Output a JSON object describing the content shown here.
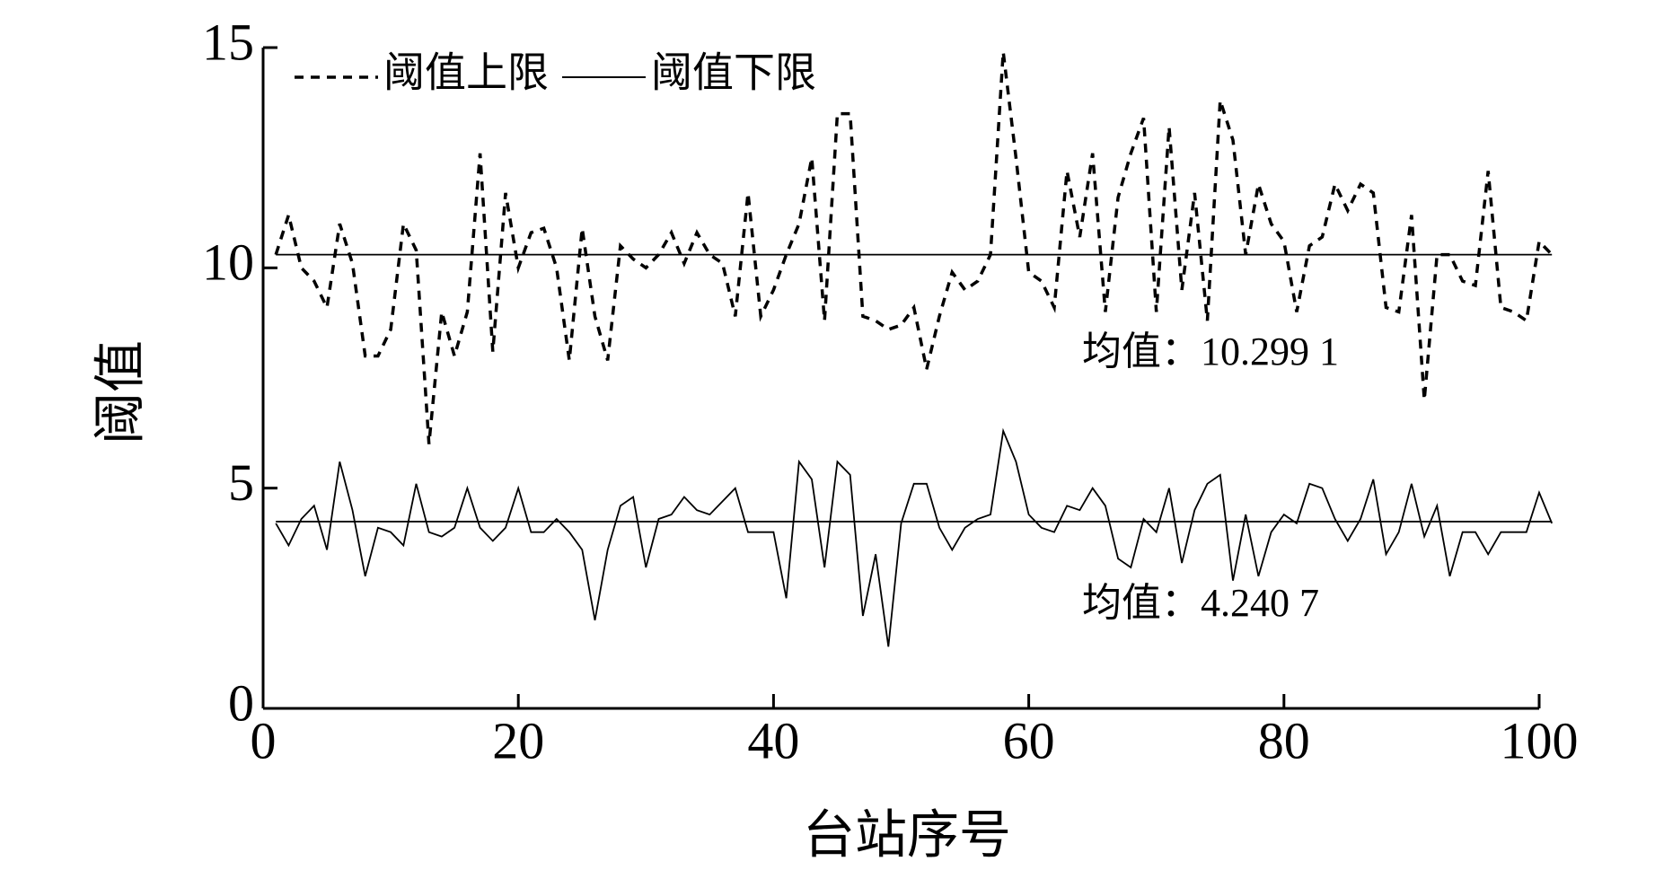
{
  "chart_data": {
    "type": "line",
    "xlabel": "台站序号",
    "ylabel": "阈值",
    "xlim": [
      0,
      100
    ],
    "ylim": [
      0,
      15
    ],
    "xticks": [
      0,
      20,
      40,
      60,
      80,
      100
    ],
    "yticks": [
      0,
      5,
      10,
      15
    ],
    "legend": "upper left",
    "x": [
      1,
      2,
      3,
      4,
      5,
      6,
      7,
      8,
      9,
      10,
      11,
      12,
      13,
      14,
      15,
      16,
      17,
      18,
      19,
      20,
      21,
      22,
      23,
      24,
      25,
      26,
      27,
      28,
      29,
      30,
      31,
      32,
      33,
      34,
      35,
      36,
      37,
      38,
      39,
      40,
      41,
      42,
      43,
      44,
      45,
      46,
      47,
      48,
      49,
      50,
      51,
      52,
      53,
      54,
      55,
      56,
      57,
      58,
      59,
      60,
      61,
      62,
      63,
      64,
      65,
      66,
      67,
      68,
      69,
      70,
      71,
      72,
      73,
      74,
      75,
      76,
      77,
      78,
      79,
      80,
      81,
      82,
      83,
      84,
      85,
      86,
      87,
      88,
      89,
      90,
      91,
      92,
      93,
      94,
      95,
      96,
      97,
      98,
      99,
      100,
      101
    ],
    "series": [
      {
        "name": "阈值上限",
        "color": "#000000",
        "dash": "dashed",
        "values": [
          10.3,
          11.2,
          10.0,
          9.7,
          9.1,
          11.0,
          10.1,
          8.0,
          8.0,
          8.6,
          11.0,
          10.4,
          6.0,
          9.0,
          8.0,
          9.0,
          12.6,
          8.1,
          11.7,
          10.0,
          10.8,
          10.9,
          10.0,
          7.9,
          10.9,
          8.9,
          7.9,
          10.5,
          10.2,
          10.0,
          10.3,
          10.8,
          10.1,
          10.8,
          10.3,
          10.1,
          8.9,
          11.7,
          8.9,
          9.5,
          10.3,
          11.0,
          12.5,
          8.8,
          13.5,
          13.5,
          8.9,
          8.8,
          8.6,
          8.7,
          9.1,
          7.7,
          8.9,
          9.9,
          9.5,
          9.7,
          10.3,
          14.9,
          12.5,
          9.9,
          9.7,
          9.1,
          12.2,
          10.7,
          12.6,
          9.0,
          11.6,
          12.6,
          13.4,
          9.0,
          13.2,
          9.5,
          11.7,
          8.8,
          13.8,
          12.9,
          10.3,
          11.9,
          11.0,
          10.6,
          9.0,
          10.5,
          10.7,
          11.9,
          11.3,
          11.9,
          11.7,
          9.1,
          9.0,
          11.2,
          7.0,
          10.3,
          10.3,
          9.7,
          9.6,
          12.2,
          9.1,
          9.0,
          8.8,
          10.6,
          10.3
        ]
      },
      {
        "name": "阈值下限",
        "color": "#000000",
        "dash": "solid",
        "values": [
          4.2,
          3.7,
          4.3,
          4.6,
          3.6,
          5.6,
          4.5,
          3.0,
          4.1,
          4.0,
          3.7,
          5.1,
          4.0,
          3.9,
          4.1,
          5.0,
          4.1,
          3.8,
          4.1,
          5.0,
          4.0,
          4.0,
          4.3,
          4.0,
          3.6,
          2.0,
          3.6,
          4.6,
          4.8,
          3.2,
          4.3,
          4.4,
          4.8,
          4.5,
          4.4,
          4.7,
          5.0,
          4.0,
          4.0,
          4.0,
          2.5,
          5.6,
          5.2,
          3.2,
          5.6,
          5.3,
          2.1,
          3.5,
          1.4,
          4.2,
          5.1,
          5.1,
          4.1,
          3.6,
          4.1,
          4.3,
          4.4,
          6.3,
          5.6,
          4.4,
          4.1,
          4.0,
          4.6,
          4.5,
          5.0,
          4.6,
          3.4,
          3.2,
          4.3,
          4.0,
          5.0,
          3.3,
          4.5,
          5.1,
          5.3,
          2.9,
          4.4,
          3.0,
          4.0,
          4.4,
          4.2,
          5.1,
          5.0,
          4.3,
          3.8,
          4.3,
          5.2,
          3.5,
          4.0,
          5.1,
          3.9,
          4.6,
          3.0,
          4.0,
          4.0,
          3.5,
          4.0,
          4.0,
          4.0,
          4.9,
          4.2
        ]
      }
    ],
    "annotations": [
      {
        "value": 10.2991,
        "label": "均值：10.299 1"
      },
      {
        "value": 4.2407,
        "label": "均值：4.240 7"
      }
    ]
  }
}
